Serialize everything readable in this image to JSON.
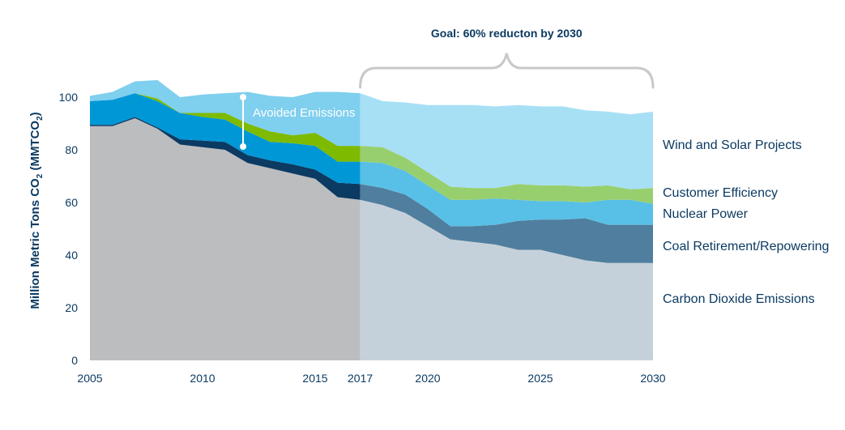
{
  "chart_data": {
    "type": "area",
    "stacked": true,
    "ylabel": "Million Metric Tons CO",
    "ylabel_sub": "2",
    "ylabel_suffix": " (MMTCO",
    "ylabel_end": ")",
    "ylim": [
      0,
      100
    ],
    "yticks": [
      "0",
      "20",
      "40",
      "60",
      "80",
      "100"
    ],
    "xticks": [
      "2005",
      "2010",
      "2015",
      "2017",
      "2020",
      "2025",
      "2030"
    ],
    "projection_start": 2017,
    "x": [
      2005,
      2006,
      2007,
      2008,
      2009,
      2010,
      2011,
      2012,
      2013,
      2014,
      2015,
      2016,
      2017,
      2018,
      2019,
      2020,
      2021,
      2022,
      2023,
      2024,
      2025,
      2026,
      2027,
      2028,
      2029,
      2030
    ],
    "series": [
      {
        "name": "Carbon Dioxide Emissions",
        "color": "#bcbdbf",
        "projColor": "#c5d1da",
        "values": [
          89,
          89,
          92,
          88,
          82,
          81,
          80,
          75,
          73,
          71,
          69,
          62,
          61,
          59,
          56,
          51,
          46,
          45,
          44,
          42,
          42,
          40,
          38,
          37,
          37,
          37
        ]
      },
      {
        "name": "Coal Retirement/Repowering",
        "color": "#0b3a62",
        "projColor": "#507e9e",
        "values": [
          0.5,
          0.5,
          0.5,
          0.5,
          2,
          2.5,
          3,
          3,
          3,
          3.5,
          3.5,
          5.5,
          6,
          6.5,
          7,
          6.5,
          5,
          6,
          7.5,
          11,
          11.5,
          13.5,
          16,
          14.5,
          14.5,
          14.5
        ]
      },
      {
        "name": "Nuclear Power",
        "color": "#0097d7",
        "projColor": "#58c0e6",
        "values": [
          9,
          9.5,
          9,
          10,
          10,
          9,
          8.5,
          9,
          7,
          8,
          9,
          8,
          8.5,
          9.5,
          9,
          9,
          10,
          10,
          10,
          8,
          7,
          7,
          6,
          9.5,
          9.5,
          8
        ]
      },
      {
        "name": "Customer Efficiency",
        "color": "#7dba00",
        "projColor": "#98cf6e",
        "values": [
          0,
          0,
          0,
          1,
          0,
          1.5,
          2.5,
          3,
          4,
          3,
          5,
          6,
          6,
          6,
          5,
          5,
          5,
          4.5,
          4,
          6,
          6,
          6,
          6,
          5.5,
          4,
          6
        ]
      },
      {
        "name": "Wind and Solar Projects",
        "color": "#7fcfee",
        "projColor": "#a7e0f5",
        "values": [
          2,
          3,
          4.5,
          7,
          6,
          7,
          7.5,
          12,
          13.5,
          14.5,
          15.5,
          20.5,
          20,
          17.5,
          21,
          25.5,
          31,
          31.5,
          31,
          30,
          30,
          30,
          29,
          28,
          28.5,
          29
        ]
      }
    ],
    "goal_label": "Goal: 60% reducton by 2030",
    "annotation": "Avoided Emissions"
  }
}
